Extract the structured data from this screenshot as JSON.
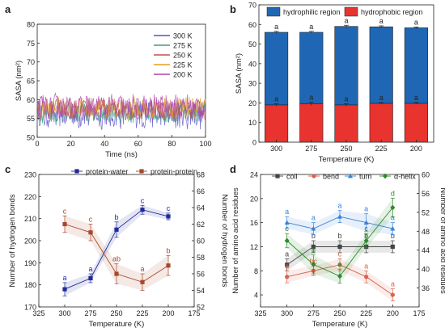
{
  "panels": {
    "a": {
      "letter": "a"
    },
    "b": {
      "letter": "b"
    },
    "c": {
      "letter": "c"
    },
    "d": {
      "letter": "d"
    }
  },
  "chart_data": [
    {
      "panel": "a",
      "type": "line",
      "xlabel": "Time (ns)",
      "ylabel": "SASA (nm²)",
      "xlim": [
        0,
        100
      ],
      "ylim": [
        50,
        80
      ],
      "xticks": [
        0,
        20,
        40,
        60,
        80,
        100
      ],
      "yticks": [
        50,
        55,
        60,
        65,
        70,
        75,
        80
      ],
      "legend": "top-right",
      "series": [
        {
          "name": "300 K",
          "color": "#5a4fc8",
          "mean": 56.0,
          "range": [
            52.0,
            60.5
          ]
        },
        {
          "name": "275 K",
          "color": "#3aa37a",
          "mean": 56.5,
          "range": [
            53.5,
            59.5
          ]
        },
        {
          "name": "250 K",
          "color": "#c0524a",
          "mean": 57.5,
          "range": [
            54.5,
            61.0
          ]
        },
        {
          "name": "225 K",
          "color": "#e0a020",
          "mean": 57.8,
          "range": [
            55.0,
            61.5
          ]
        },
        {
          "name": "200 K",
          "color": "#b040b0",
          "mean": 58.0,
          "range": [
            55.0,
            62.5
          ]
        }
      ]
    },
    {
      "panel": "b",
      "type": "bar",
      "stacked": true,
      "xlabel": "Temperature (K)",
      "ylabel": "SASA (nm²)",
      "ylim": [
        0,
        70
      ],
      "yticks": [
        0,
        10,
        20,
        30,
        40,
        50,
        60,
        70
      ],
      "categories": [
        "300",
        "275",
        "250",
        "225",
        "200"
      ],
      "legend": "top",
      "series": [
        {
          "name": "hydrophobic region",
          "color": "#e8332f",
          "values": [
            19.0,
            19.5,
            19.0,
            19.8,
            19.8
          ],
          "errors": [
            0.5,
            0.8,
            0.5,
            0.4,
            0.4
          ],
          "letters": [
            "a",
            "a",
            "a",
            "a",
            "a"
          ]
        },
        {
          "name": "hydrophilic region",
          "color": "#1f67b4",
          "values": [
            37.0,
            36.5,
            40.0,
            39.0,
            38.5
          ],
          "errors": [
            0.5,
            0.5,
            0.6,
            0.5,
            0.4
          ],
          "letters": [
            "a",
            "a",
            "a",
            "a",
            "a"
          ]
        }
      ]
    },
    {
      "panel": "c",
      "type": "line",
      "xlabel": "Temperature (K)",
      "ylabel": "Number of hydrogen bonds",
      "ylabel_right": "Number of hydrogen bonds",
      "xlim": [
        325,
        175
      ],
      "xticks": [
        325,
        300,
        275,
        250,
        225,
        200,
        175
      ],
      "ylim": [
        170,
        230
      ],
      "yticks": [
        170,
        180,
        190,
        200,
        210,
        220,
        230
      ],
      "ylim_right": [
        52,
        68
      ],
      "yticks_right": [
        52,
        54,
        56,
        58,
        60,
        62,
        64,
        66,
        68
      ],
      "legend": "top",
      "x": [
        300,
        275,
        250,
        225,
        200
      ],
      "series": [
        {
          "name": "protein-water",
          "axis": "left",
          "color": "#1f2a9c",
          "marker": "square",
          "values": [
            178.0,
            183.0,
            205.0,
            214.0,
            211.0
          ],
          "errors": [
            3.0,
            2.0,
            3.5,
            2.0,
            1.5
          ],
          "letters": [
            "a",
            "a",
            "b",
            "c",
            "c"
          ]
        },
        {
          "name": "protein-protein",
          "axis": "right",
          "color": "#a8482a",
          "marker": "square",
          "values": [
            62.0,
            61.0,
            56.0,
            55.0,
            57.0
          ],
          "errors": [
            1.0,
            1.0,
            1.2,
            1.0,
            1.2
          ],
          "letters": [
            "c",
            "c",
            "ab",
            "a",
            "b"
          ]
        }
      ]
    },
    {
      "panel": "d",
      "type": "line",
      "xlabel": "Temperature (K)",
      "ylabel": "Number of amino acid residues",
      "ylabel_right": "Number of amino acid residues",
      "xlim": [
        325,
        175
      ],
      "xticks": [
        325,
        300,
        275,
        250,
        225,
        200,
        175
      ],
      "ylim": [
        2,
        24
      ],
      "yticks": [
        4,
        8,
        12,
        16,
        20,
        24
      ],
      "ylim_right": [
        32,
        60
      ],
      "yticks_right": [
        36,
        40,
        44,
        48,
        52,
        56,
        60
      ],
      "legend": "top",
      "x": [
        300,
        275,
        250,
        225,
        200
      ],
      "series": [
        {
          "name": "coil",
          "axis": "left",
          "color": "#444444",
          "marker": "square",
          "values": [
            9.0,
            12.0,
            12.0,
            12.0,
            12.0
          ],
          "errors": [
            1.0,
            1.0,
            1.0,
            1.0,
            1.0
          ],
          "letters": [
            "a",
            "b",
            "b",
            "b",
            "b"
          ]
        },
        {
          "name": "bend",
          "axis": "left",
          "color": "#d9634a",
          "marker": "circle",
          "values": [
            7.0,
            8.0,
            9.0,
            7.0,
            4.0
          ],
          "errors": [
            1.0,
            0.8,
            1.0,
            1.0,
            1.0
          ],
          "letters": [
            "a",
            "bc",
            "c",
            "a",
            "a"
          ]
        },
        {
          "name": "turn",
          "axis": "left",
          "color": "#3a82d8",
          "marker": "triangle",
          "values": [
            16.0,
            15.0,
            17.0,
            16.0,
            15.0
          ],
          "errors": [
            1.0,
            1.0,
            1.0,
            1.5,
            1.0
          ],
          "letters": [
            "a",
            "a",
            "a",
            "a",
            "a"
          ]
        },
        {
          "name": "α-helix",
          "axis": "right",
          "color": "#2d8a2d",
          "marker": "diamond",
          "values": [
            46.0,
            41.0,
            38.5,
            46.0,
            53.0
          ],
          "errors": [
            1.5,
            2.0,
            1.5,
            1.5,
            2.0
          ],
          "letters": [
            "c",
            "b",
            "a",
            "c",
            "d"
          ]
        }
      ]
    }
  ]
}
